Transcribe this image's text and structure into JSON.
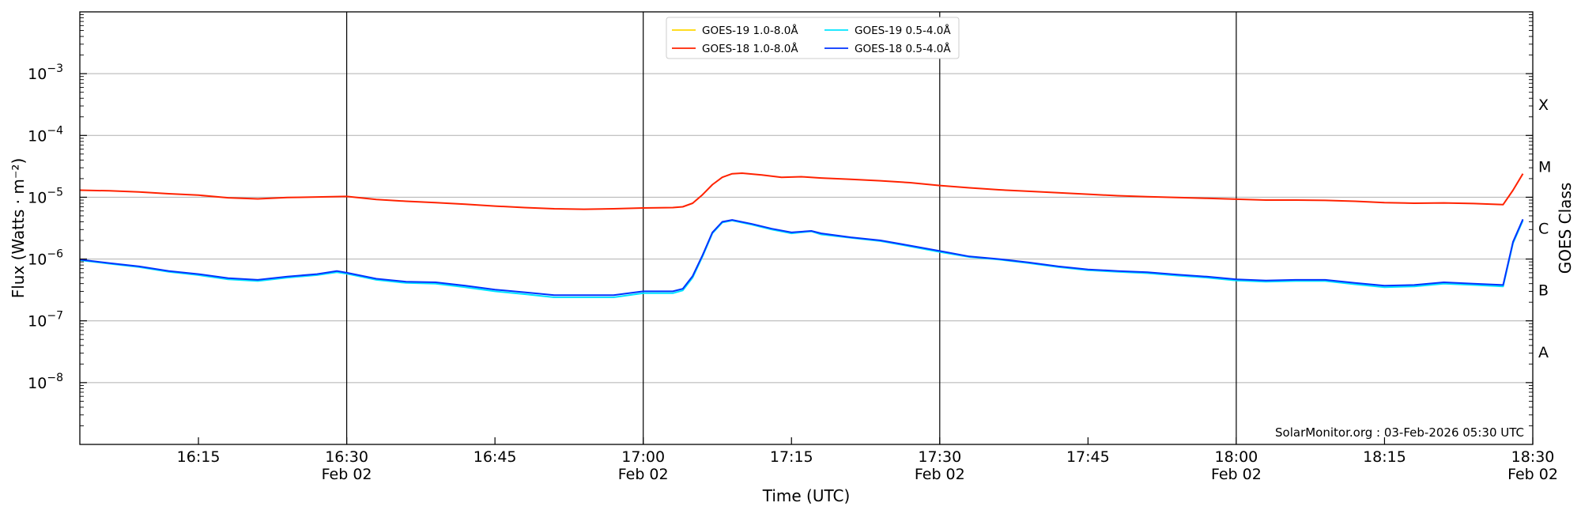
{
  "chart_data": {
    "type": "line",
    "xlabel": "Time (UTC)",
    "ylabel": "Flux (Watts · m⁻²)",
    "ylabel_right": "GOES Class",
    "y_scale": "log",
    "x_range": [
      "16:03",
      "18:30"
    ],
    "ylim": [
      1e-09,
      0.01
    ],
    "grid": "horizontal at decades",
    "x_ticks": [
      {
        "time": "16:15",
        "label": "16:15",
        "date": ""
      },
      {
        "time": "16:30",
        "label": "16:30",
        "date": "Feb 02"
      },
      {
        "time": "16:45",
        "label": "16:45",
        "date": ""
      },
      {
        "time": "17:00",
        "label": "17:00",
        "date": "Feb 02"
      },
      {
        "time": "17:15",
        "label": "17:15",
        "date": ""
      },
      {
        "time": "17:30",
        "label": "17:30",
        "date": "Feb 02"
      },
      {
        "time": "17:45",
        "label": "17:45",
        "date": ""
      },
      {
        "time": "18:00",
        "label": "18:00",
        "date": "Feb 02"
      },
      {
        "time": "18:15",
        "label": "18:15",
        "date": ""
      },
      {
        "time": "18:30",
        "label": "18:30",
        "date": "Feb 02"
      }
    ],
    "vertical_lines": [
      "16:30",
      "17:00",
      "17:30",
      "18:00"
    ],
    "y_ticks": [
      {
        "value": 1e-08,
        "label_base": "10",
        "label_exp": "−8"
      },
      {
        "value": 1e-07,
        "label_base": "10",
        "label_exp": "−7"
      },
      {
        "value": 1e-06,
        "label_base": "10",
        "label_exp": "−6"
      },
      {
        "value": 1e-05,
        "label_base": "10",
        "label_exp": "−5"
      },
      {
        "value": 0.0001,
        "label_base": "10",
        "label_exp": "−4"
      },
      {
        "value": 0.001,
        "label_base": "10",
        "label_exp": "−3"
      }
    ],
    "goes_classes": [
      {
        "label": "A",
        "value": 3.16e-08
      },
      {
        "label": "B",
        "value": 3.16e-07
      },
      {
        "label": "C",
        "value": 3.16e-06
      },
      {
        "label": "M",
        "value": 3.16e-05
      },
      {
        "label": "X",
        "value": 0.000316
      }
    ],
    "legend_position": "top-center",
    "legend": [
      {
        "name": "GOES-19 1.0-8.0Å",
        "color": "#ffd700"
      },
      {
        "name": "GOES-18 1.0-8.0Å",
        "color": "#ff2200"
      },
      {
        "name": "GOES-19 0.5-4.0Å",
        "color": "#00e5ff"
      },
      {
        "name": "GOES-18 0.5-4.0Å",
        "color": "#0033ff"
      }
    ],
    "annotation": "SolarMonitor.org : 03-Feb-2026 05:30 UTC",
    "series": [
      {
        "name": "GOES-18 1.0-8.0Å",
        "color": "#ff2200",
        "points": [
          [
            "16:03",
            1.3e-05
          ],
          [
            "16:06",
            1.27e-05
          ],
          [
            "16:09",
            1.22e-05
          ],
          [
            "16:12",
            1.14e-05
          ],
          [
            "16:15",
            1.08e-05
          ],
          [
            "16:18",
            9.8e-06
          ],
          [
            "16:21",
            9.4e-06
          ],
          [
            "16:24",
            9.9e-06
          ],
          [
            "16:27",
            1.01e-05
          ],
          [
            "16:30",
            1.03e-05
          ],
          [
            "16:33",
            9.2e-06
          ],
          [
            "16:36",
            8.6e-06
          ],
          [
            "16:39",
            8.2e-06
          ],
          [
            "16:42",
            7.7e-06
          ],
          [
            "16:45",
            7.2e-06
          ],
          [
            "16:48",
            6.8e-06
          ],
          [
            "16:51",
            6.5e-06
          ],
          [
            "16:54",
            6.4e-06
          ],
          [
            "16:57",
            6.5e-06
          ],
          [
            "17:00",
            6.7e-06
          ],
          [
            "17:03",
            6.8e-06
          ],
          [
            "17:04",
            7e-06
          ],
          [
            "17:05",
            8e-06
          ],
          [
            "17:06",
            1.1e-05
          ],
          [
            "17:07",
            1.6e-05
          ],
          [
            "17:08",
            2.1e-05
          ],
          [
            "17:09",
            2.4e-05
          ],
          [
            "17:10",
            2.45e-05
          ],
          [
            "17:12",
            2.3e-05
          ],
          [
            "17:14",
            2.1e-05
          ],
          [
            "17:16",
            2.15e-05
          ],
          [
            "17:18",
            2.05e-05
          ],
          [
            "17:21",
            1.95e-05
          ],
          [
            "17:24",
            1.85e-05
          ],
          [
            "17:27",
            1.72e-05
          ],
          [
            "17:30",
            1.55e-05
          ],
          [
            "17:33",
            1.42e-05
          ],
          [
            "17:36",
            1.32e-05
          ],
          [
            "17:39",
            1.25e-05
          ],
          [
            "17:42",
            1.18e-05
          ],
          [
            "17:45",
            1.12e-05
          ],
          [
            "17:48",
            1.06e-05
          ],
          [
            "17:51",
            1.02e-05
          ],
          [
            "17:54",
            9.9e-06
          ],
          [
            "17:57",
            9.6e-06
          ],
          [
            "18:00",
            9.3e-06
          ],
          [
            "18:03",
            9e-06
          ],
          [
            "18:06",
            9e-06
          ],
          [
            "18:09",
            8.9e-06
          ],
          [
            "18:12",
            8.6e-06
          ],
          [
            "18:15",
            8.2e-06
          ],
          [
            "18:18",
            8e-06
          ],
          [
            "18:21",
            8.1e-06
          ],
          [
            "18:24",
            7.9e-06
          ],
          [
            "18:27",
            7.6e-06
          ],
          [
            "18:28",
            1.3e-05
          ],
          [
            "18:29",
            2.4e-05
          ]
        ]
      },
      {
        "name": "GOES-19 0.5-4.0Å",
        "color": "#00e5ff",
        "points": [
          [
            "16:03",
            9.6e-07
          ],
          [
            "16:06",
            8.4e-07
          ],
          [
            "16:09",
            7.4e-07
          ],
          [
            "16:12",
            6.2e-07
          ],
          [
            "16:15",
            5.5e-07
          ],
          [
            "16:18",
            4.7e-07
          ],
          [
            "16:21",
            4.4e-07
          ],
          [
            "16:24",
            5e-07
          ],
          [
            "16:27",
            5.5e-07
          ],
          [
            "16:29",
            6.1e-07
          ],
          [
            "16:30",
            5.8e-07
          ],
          [
            "16:33",
            4.6e-07
          ],
          [
            "16:36",
            4.1e-07
          ],
          [
            "16:39",
            4e-07
          ],
          [
            "16:42",
            3.5e-07
          ],
          [
            "16:45",
            3e-07
          ],
          [
            "16:48",
            2.7e-07
          ],
          [
            "16:51",
            2.4e-07
          ],
          [
            "16:54",
            2.4e-07
          ],
          [
            "16:57",
            2.4e-07
          ],
          [
            "17:00",
            2.8e-07
          ],
          [
            "17:03",
            2.8e-07
          ],
          [
            "17:04",
            3.1e-07
          ],
          [
            "17:05",
            5e-07
          ],
          [
            "17:06",
            1.1e-06
          ],
          [
            "17:07",
            2.6e-06
          ],
          [
            "17:08",
            3.9e-06
          ],
          [
            "17:09",
            4.2e-06
          ],
          [
            "17:11",
            3.6e-06
          ],
          [
            "17:13",
            3e-06
          ],
          [
            "17:15",
            2.6e-06
          ],
          [
            "17:17",
            2.8e-06
          ],
          [
            "17:18",
            2.5e-06
          ],
          [
            "17:21",
            2.2e-06
          ],
          [
            "17:24",
            1.95e-06
          ],
          [
            "17:27",
            1.6e-06
          ],
          [
            "17:30",
            1.3e-06
          ],
          [
            "17:33",
            1.08e-06
          ],
          [
            "17:36",
            9.8e-07
          ],
          [
            "17:39",
            8.6e-07
          ],
          [
            "17:42",
            7.4e-07
          ],
          [
            "17:45",
            6.6e-07
          ],
          [
            "17:48",
            6.2e-07
          ],
          [
            "17:51",
            5.9e-07
          ],
          [
            "17:54",
            5.4e-07
          ],
          [
            "17:57",
            5e-07
          ],
          [
            "18:00",
            4.5e-07
          ],
          [
            "18:03",
            4.3e-07
          ],
          [
            "18:06",
            4.4e-07
          ],
          [
            "18:09",
            4.4e-07
          ],
          [
            "18:12",
            3.9e-07
          ],
          [
            "18:15",
            3.5e-07
          ],
          [
            "18:18",
            3.6e-07
          ],
          [
            "18:21",
            4e-07
          ],
          [
            "18:24",
            3.8e-07
          ],
          [
            "18:27",
            3.6e-07
          ],
          [
            "18:28",
            1.8e-06
          ],
          [
            "18:29",
            4.2e-06
          ]
        ]
      },
      {
        "name": "GOES-18 0.5-4.0Å",
        "color": "#0033ff",
        "points": [
          [
            "16:03",
            9.8e-07
          ],
          [
            "16:06",
            8.6e-07
          ],
          [
            "16:09",
            7.6e-07
          ],
          [
            "16:12",
            6.4e-07
          ],
          [
            "16:15",
            5.7e-07
          ],
          [
            "16:18",
            4.9e-07
          ],
          [
            "16:21",
            4.6e-07
          ],
          [
            "16:24",
            5.2e-07
          ],
          [
            "16:27",
            5.7e-07
          ],
          [
            "16:29",
            6.4e-07
          ],
          [
            "16:30",
            6e-07
          ],
          [
            "16:33",
            4.8e-07
          ],
          [
            "16:36",
            4.3e-07
          ],
          [
            "16:39",
            4.2e-07
          ],
          [
            "16:42",
            3.7e-07
          ],
          [
            "16:45",
            3.2e-07
          ],
          [
            "16:48",
            2.9e-07
          ],
          [
            "16:51",
            2.6e-07
          ],
          [
            "16:54",
            2.6e-07
          ],
          [
            "16:57",
            2.6e-07
          ],
          [
            "17:00",
            3e-07
          ],
          [
            "17:03",
            3e-07
          ],
          [
            "17:04",
            3.3e-07
          ],
          [
            "17:05",
            5.3e-07
          ],
          [
            "17:06",
            1.15e-06
          ],
          [
            "17:07",
            2.7e-06
          ],
          [
            "17:08",
            4e-06
          ],
          [
            "17:09",
            4.3e-06
          ],
          [
            "17:11",
            3.7e-06
          ],
          [
            "17:13",
            3.1e-06
          ],
          [
            "17:15",
            2.7e-06
          ],
          [
            "17:17",
            2.85e-06
          ],
          [
            "17:18",
            2.6e-06
          ],
          [
            "17:21",
            2.25e-06
          ],
          [
            "17:24",
            2e-06
          ],
          [
            "17:27",
            1.65e-06
          ],
          [
            "17:30",
            1.35e-06
          ],
          [
            "17:33",
            1.1e-06
          ],
          [
            "17:36",
            1e-06
          ],
          [
            "17:39",
            8.8e-07
          ],
          [
            "17:42",
            7.6e-07
          ],
          [
            "17:45",
            6.8e-07
          ],
          [
            "17:48",
            6.4e-07
          ],
          [
            "17:51",
            6.1e-07
          ],
          [
            "17:54",
            5.6e-07
          ],
          [
            "17:57",
            5.2e-07
          ],
          [
            "18:00",
            4.7e-07
          ],
          [
            "18:03",
            4.5e-07
          ],
          [
            "18:06",
            4.6e-07
          ],
          [
            "18:09",
            4.6e-07
          ],
          [
            "18:12",
            4.1e-07
          ],
          [
            "18:15",
            3.7e-07
          ],
          [
            "18:18",
            3.8e-07
          ],
          [
            "18:21",
            4.2e-07
          ],
          [
            "18:24",
            4e-07
          ],
          [
            "18:27",
            3.8e-07
          ],
          [
            "18:28",
            1.9e-06
          ],
          [
            "18:29",
            4.4e-06
          ]
        ]
      }
    ]
  }
}
